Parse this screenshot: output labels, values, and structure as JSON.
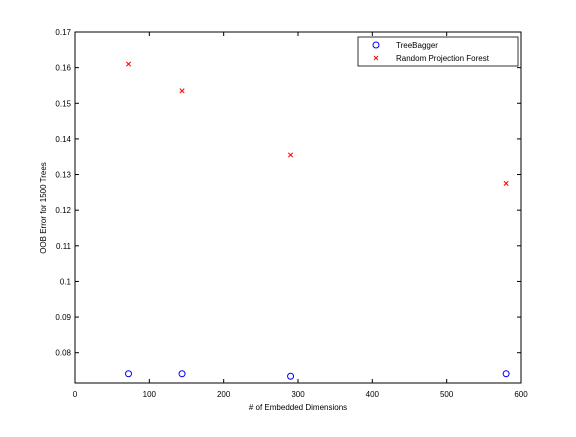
{
  "chart_data": {
    "type": "scatter",
    "title": "",
    "xlabel": "# of Embedded Dimensions",
    "ylabel": "OOB Error for 1500 Trees",
    "xlim": [
      0,
      600
    ],
    "ylim": [
      0.0715,
      0.17
    ],
    "xticks": [
      0,
      100,
      200,
      300,
      400,
      500,
      600
    ],
    "yticks": [
      0.08,
      0.09,
      0.1,
      0.11,
      0.12,
      0.13,
      0.14,
      0.15,
      0.16,
      0.17
    ],
    "xtick_labels": [
      "0",
      "100",
      "200",
      "300",
      "400",
      "500",
      "600"
    ],
    "ytick_labels": [
      "0.08",
      "0.09",
      "0.1",
      "0.11",
      "0.12",
      "0.13",
      "0.14",
      "0.15",
      "0.16",
      "0.17"
    ],
    "grid": false,
    "legend_position": "top-right",
    "series": [
      {
        "name": "TreeBagger",
        "marker": "circle",
        "color": "#0000ff",
        "x": [
          72,
          144,
          290,
          580
        ],
        "y": [
          0.0741,
          0.0741,
          0.0734,
          0.0741
        ]
      },
      {
        "name": "Random Projection Forest",
        "marker": "x",
        "color": "#ff0000",
        "x": [
          72,
          144,
          290,
          580
        ],
        "y": [
          0.161,
          0.1535,
          0.1355,
          0.1275
        ]
      }
    ]
  }
}
